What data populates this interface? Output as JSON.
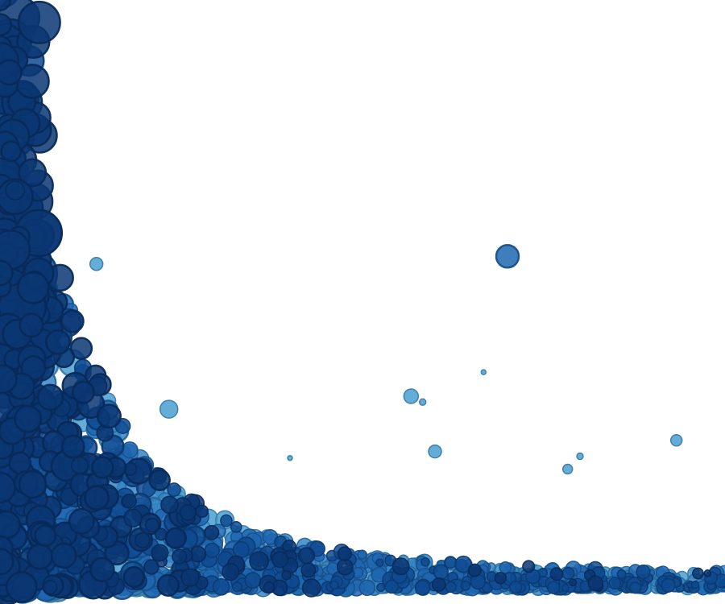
{
  "chart_data": {
    "type": "scatter",
    "title": "",
    "xlabel": "",
    "ylabel": "",
    "grid": false,
    "legend": "none",
    "axes_visible": false,
    "xlim": [
      0,
      100
    ],
    "ylim": [
      0,
      100
    ],
    "fill_opacity": 0.85,
    "stroke_opacity": 0.95,
    "palette": [
      "#4a9fd2",
      "#3585c5",
      "#1f66b0",
      "#0f4a90",
      "#0a3672"
    ],
    "outlier_points": [
      {
        "x": 70,
        "y": 56.4,
        "size": 14,
        "shade": 2
      },
      {
        "x": 13.3,
        "y": 55.1,
        "size": 8,
        "shade": 0
      },
      {
        "x": 66.7,
        "y": 36.7,
        "size": 3,
        "shade": 0
      },
      {
        "x": 56.7,
        "y": 32.6,
        "size": 9,
        "shade": 0
      },
      {
        "x": 58.3,
        "y": 31.6,
        "size": 4,
        "shade": 0
      },
      {
        "x": 23.3,
        "y": 30.4,
        "size": 11,
        "shade": 0
      },
      {
        "x": 93.3,
        "y": 25.1,
        "size": 7,
        "shade": 0
      },
      {
        "x": 60,
        "y": 23.2,
        "size": 8,
        "shade": 0
      },
      {
        "x": 80,
        "y": 22.4,
        "size": 4,
        "shade": 0
      },
      {
        "x": 78.3,
        "y": 20.2,
        "size": 6,
        "shade": 0
      },
      {
        "x": 40,
        "y": 22.1,
        "size": 3,
        "shade": 0
      }
    ],
    "dense_cloud": {
      "count": 1700,
      "x_range": [
        0,
        100
      ],
      "decay": 0.055,
      "floor": 2
    }
  }
}
